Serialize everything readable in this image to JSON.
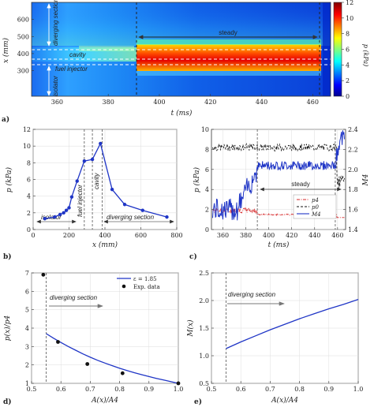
{
  "panel_labels": [
    "a)",
    "b)",
    "c)",
    "d)",
    "e)"
  ],
  "chart_data": [
    {
      "panel": "a",
      "type": "heatmap",
      "xlabel": "t (ms)",
      "ylabel": "x (mm)",
      "xticks": [
        360,
        380,
        400,
        420,
        440,
        460
      ],
      "yticks": [
        300,
        400,
        500,
        600
      ],
      "xlim": [
        350,
        467
      ],
      "ylim": [
        150,
        700
      ],
      "colorbar": {
        "label": "p (kPa)",
        "ticks": [
          0,
          2,
          4,
          6,
          8,
          10,
          12
        ],
        "range": [
          0,
          12
        ]
      },
      "annotations": {
        "diverging": "diverging section",
        "steady": "steady",
        "cavity": "cavity",
        "injector": "fuel injector",
        "isolator": "isolator"
      },
      "steady_window": [
        390,
        458
      ]
    },
    {
      "panel": "b",
      "type": "line",
      "xlabel": "x (mm)",
      "ylabel": "p (kPa)",
      "xlim": [
        0,
        800
      ],
      "ylim": [
        0,
        12
      ],
      "xticks": [
        0,
        200,
        400,
        600,
        800
      ],
      "yticks": [
        0,
        2,
        4,
        6,
        8,
        10,
        12
      ],
      "x": [
        65,
        120,
        150,
        170,
        185,
        200,
        215,
        245,
        285,
        330,
        375,
        440,
        510,
        610,
        745
      ],
      "y": [
        1.3,
        1.5,
        1.8,
        2.0,
        2.3,
        2.6,
        3.9,
        5.8,
        8.2,
        8.4,
        10.3,
        4.8,
        3.0,
        2.3,
        1.5
      ],
      "vlines": [
        285,
        330,
        385
      ],
      "annotations": {
        "injector": "fuel injector",
        "cavity": "cavity",
        "isolator": "isolator",
        "diverging": "diverging section"
      }
    },
    {
      "panel": "c",
      "type": "line",
      "xlabel": "t (ms)",
      "ylabel_left": "p (kPa)",
      "ylabel_right": "M4",
      "xlim": [
        350,
        467
      ],
      "ylim_left": [
        0,
        10
      ],
      "ylim_right": [
        1.4,
        2.4
      ],
      "xticks": [
        360,
        380,
        400,
        420,
        440,
        460
      ],
      "yticks_left": [
        0,
        2,
        4,
        6,
        8,
        10
      ],
      "yticks_right": [
        1.4,
        1.6,
        1.8,
        2.0,
        2.2,
        2.4
      ],
      "steady_label": "steady",
      "steady_window": [
        390,
        458
      ],
      "series": [
        {
          "name": "p4",
          "color": "#d62728",
          "style": "dashdot",
          "level": 1.5
        },
        {
          "name": "p0",
          "color": "#111111",
          "style": "dashed",
          "level": 8.2
        },
        {
          "name": "M4",
          "color": "#1f35c6",
          "style": "solid",
          "level": 6.4
        }
      ]
    },
    {
      "panel": "d",
      "type": "line",
      "xlabel": "A(x)/A4",
      "ylabel": "p(x)/p4",
      "xlim": [
        0.5,
        1.0
      ],
      "ylim": [
        1,
        7
      ],
      "xticks": [
        0.5,
        0.6,
        0.7,
        0.8,
        0.9,
        1.0
      ],
      "yticks": [
        1,
        2,
        3,
        4,
        5,
        6,
        7
      ],
      "legend": {
        "line": "ε = 1.85",
        "points": "Exp. data"
      },
      "annotation": "diverging section",
      "vline": 0.55,
      "model": {
        "x": [
          0.55,
          0.575,
          0.6,
          0.625,
          0.65,
          0.675,
          0.7,
          0.725,
          0.75,
          0.775,
          0.8,
          0.825,
          0.85,
          0.875,
          0.9,
          0.925,
          0.95,
          0.975,
          1.0
        ],
        "y": [
          3.7,
          3.45,
          3.22,
          3.0,
          2.8,
          2.6,
          2.42,
          2.25,
          2.1,
          1.96,
          1.82,
          1.7,
          1.58,
          1.47,
          1.37,
          1.27,
          1.18,
          1.09,
          1.0
        ]
      },
      "exp": {
        "x": [
          0.54,
          0.59,
          0.69,
          0.81,
          1.0
        ],
        "y": [
          6.9,
          3.25,
          2.05,
          1.55,
          1.0
        ]
      }
    },
    {
      "panel": "e",
      "type": "line",
      "xlabel": "A(x)/A4",
      "ylabel": "M(x)",
      "xlim": [
        0.5,
        1.0
      ],
      "ylim": [
        0.5,
        2.5
      ],
      "xticks": [
        0.5,
        0.6,
        0.7,
        0.8,
        0.9,
        1.0
      ],
      "yticks": [
        0.5,
        1.0,
        1.5,
        2.0,
        2.5
      ],
      "annotation": "diverging section",
      "vline": 0.55,
      "x": [
        0.55,
        0.6,
        0.65,
        0.7,
        0.75,
        0.8,
        0.85,
        0.9,
        0.95,
        1.0
      ],
      "y": [
        1.13,
        1.25,
        1.36,
        1.47,
        1.57,
        1.67,
        1.76,
        1.85,
        1.93,
        2.02
      ]
    }
  ]
}
